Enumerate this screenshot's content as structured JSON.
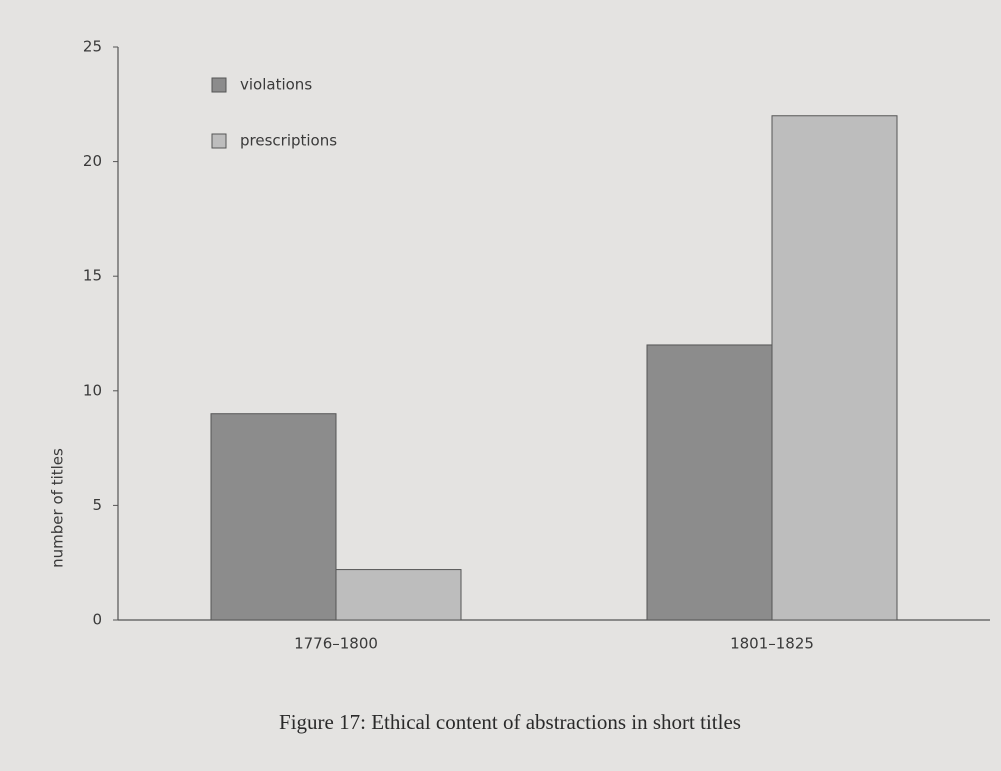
{
  "chart_data": {
    "type": "bar",
    "title": "Figure 17: Ethical content of abstractions in short titles",
    "y_label": "number of titles",
    "categories": [
      "1776–1800",
      "1801–1825"
    ],
    "series": [
      {
        "name": "violations",
        "color": "#8c8c8c",
        "values": [
          9,
          12
        ]
      },
      {
        "name": "prescriptions",
        "color": "#bdbdbd",
        "values": [
          2.2,
          22
        ]
      }
    ],
    "ylim": [
      0,
      25
    ],
    "yticks": [
      0,
      5,
      10,
      15,
      20,
      25
    ],
    "legend": "upper left",
    "grid": false
  }
}
